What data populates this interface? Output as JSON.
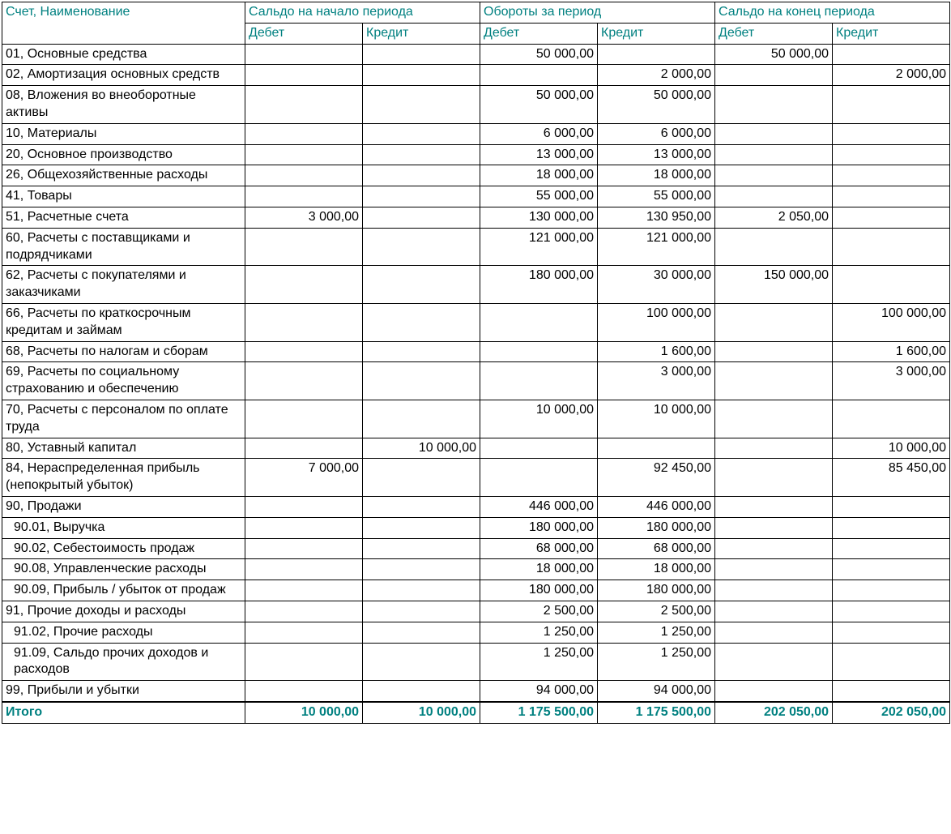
{
  "colors": {
    "header_text": "#008080",
    "total_text": "#008080",
    "border": "#000000",
    "background": "#ffffff",
    "body_text": "#000000"
  },
  "typography": {
    "font_family": "Arial, sans-serif",
    "font_size_pt": 12
  },
  "table": {
    "header_top": {
      "account": "Счет, Наименование",
      "opening": "Сальдо на начало периода",
      "turnover": "Обороты за период",
      "closing": "Сальдо на конец периода"
    },
    "header_sub": {
      "debit": "Дебет",
      "credit": "Кредит"
    },
    "rows": [
      {
        "name": "01, Основные средства",
        "indent": false,
        "open_d": "",
        "open_c": "",
        "turn_d": "50 000,00",
        "turn_c": "",
        "close_d": "50 000,00",
        "close_c": ""
      },
      {
        "name": "02, Амортизация основных средств",
        "indent": false,
        "open_d": "",
        "open_c": "",
        "turn_d": "",
        "turn_c": "2 000,00",
        "close_d": "",
        "close_c": "2 000,00"
      },
      {
        "name": "08, Вложения во внеоборотные активы",
        "indent": false,
        "open_d": "",
        "open_c": "",
        "turn_d": "50 000,00",
        "turn_c": "50 000,00",
        "close_d": "",
        "close_c": ""
      },
      {
        "name": "10, Материалы",
        "indent": false,
        "open_d": "",
        "open_c": "",
        "turn_d": "6 000,00",
        "turn_c": "6 000,00",
        "close_d": "",
        "close_c": ""
      },
      {
        "name": "20, Основное производство",
        "indent": false,
        "open_d": "",
        "open_c": "",
        "turn_d": "13 000,00",
        "turn_c": "13 000,00",
        "close_d": "",
        "close_c": ""
      },
      {
        "name": "26, Общехозяйственные расходы",
        "indent": false,
        "open_d": "",
        "open_c": "",
        "turn_d": "18 000,00",
        "turn_c": "18 000,00",
        "close_d": "",
        "close_c": ""
      },
      {
        "name": "41, Товары",
        "indent": false,
        "open_d": "",
        "open_c": "",
        "turn_d": "55 000,00",
        "turn_c": "55 000,00",
        "close_d": "",
        "close_c": ""
      },
      {
        "name": "51, Расчетные счета",
        "indent": false,
        "open_d": "3 000,00",
        "open_c": "",
        "turn_d": "130 000,00",
        "turn_c": "130 950,00",
        "close_d": "2 050,00",
        "close_c": ""
      },
      {
        "name": "60, Расчеты с поставщиками и подрядчиками",
        "indent": false,
        "open_d": "",
        "open_c": "",
        "turn_d": "121 000,00",
        "turn_c": "121 000,00",
        "close_d": "",
        "close_c": ""
      },
      {
        "name": "62, Расчеты с покупателями и заказчиками",
        "indent": false,
        "open_d": "",
        "open_c": "",
        "turn_d": "180 000,00",
        "turn_c": "30 000,00",
        "close_d": "150 000,00",
        "close_c": ""
      },
      {
        "name": "66, Расчеты по краткосрочным кредитам и займам",
        "indent": false,
        "open_d": "",
        "open_c": "",
        "turn_d": "",
        "turn_c": "100 000,00",
        "close_d": "",
        "close_c": "100 000,00"
      },
      {
        "name": "68, Расчеты по налогам и сборам",
        "indent": false,
        "open_d": "",
        "open_c": "",
        "turn_d": "",
        "turn_c": "1 600,00",
        "close_d": "",
        "close_c": "1 600,00"
      },
      {
        "name": "69, Расчеты по социальному страхованию и обеспечению",
        "indent": false,
        "open_d": "",
        "open_c": "",
        "turn_d": "",
        "turn_c": "3 000,00",
        "close_d": "",
        "close_c": "3 000,00"
      },
      {
        "name": "70, Расчеты с персоналом по оплате труда",
        "indent": false,
        "open_d": "",
        "open_c": "",
        "turn_d": "10 000,00",
        "turn_c": "10 000,00",
        "close_d": "",
        "close_c": ""
      },
      {
        "name": "80, Уставный капитал",
        "indent": false,
        "open_d": "",
        "open_c": "10 000,00",
        "turn_d": "",
        "turn_c": "",
        "close_d": "",
        "close_c": "10 000,00"
      },
      {
        "name": "84, Нераспределенная прибыль (непокрытый убыток)",
        "indent": false,
        "open_d": "7 000,00",
        "open_c": "",
        "turn_d": "",
        "turn_c": "92 450,00",
        "close_d": "",
        "close_c": "85 450,00"
      },
      {
        "name": "90, Продажи",
        "indent": false,
        "open_d": "",
        "open_c": "",
        "turn_d": "446 000,00",
        "turn_c": "446 000,00",
        "close_d": "",
        "close_c": ""
      },
      {
        "name": "90.01, Выручка",
        "indent": true,
        "open_d": "",
        "open_c": "",
        "turn_d": "180 000,00",
        "turn_c": "180 000,00",
        "close_d": "",
        "close_c": ""
      },
      {
        "name": "90.02, Себестоимость продаж",
        "indent": true,
        "open_d": "",
        "open_c": "",
        "turn_d": "68 000,00",
        "turn_c": "68 000,00",
        "close_d": "",
        "close_c": ""
      },
      {
        "name": "90.08, Управленческие расходы",
        "indent": true,
        "open_d": "",
        "open_c": "",
        "turn_d": "18 000,00",
        "turn_c": "18 000,00",
        "close_d": "",
        "close_c": ""
      },
      {
        "name": "90.09, Прибыль / убыток от продаж",
        "indent": true,
        "open_d": "",
        "open_c": "",
        "turn_d": "180 000,00",
        "turn_c": "180 000,00",
        "close_d": "",
        "close_c": ""
      },
      {
        "name": "91, Прочие доходы и расходы",
        "indent": false,
        "open_d": "",
        "open_c": "",
        "turn_d": "2 500,00",
        "turn_c": "2 500,00",
        "close_d": "",
        "close_c": ""
      },
      {
        "name": "91.02, Прочие расходы",
        "indent": true,
        "open_d": "",
        "open_c": "",
        "turn_d": "1 250,00",
        "turn_c": "1 250,00",
        "close_d": "",
        "close_c": ""
      },
      {
        "name": "91.09, Сальдо прочих доходов и расходов",
        "indent": true,
        "open_d": "",
        "open_c": "",
        "turn_d": "1 250,00",
        "turn_c": "1 250,00",
        "close_d": "",
        "close_c": ""
      },
      {
        "name": "99, Прибыли и убытки",
        "indent": false,
        "open_d": "",
        "open_c": "",
        "turn_d": "94 000,00",
        "turn_c": "94 000,00",
        "close_d": "",
        "close_c": ""
      }
    ],
    "total": {
      "label": "Итого",
      "open_d": "10 000,00",
      "open_c": "10 000,00",
      "turn_d": "1 175 500,00",
      "turn_c": "1 175 500,00",
      "close_d": "202 050,00",
      "close_c": "202 050,00"
    }
  }
}
